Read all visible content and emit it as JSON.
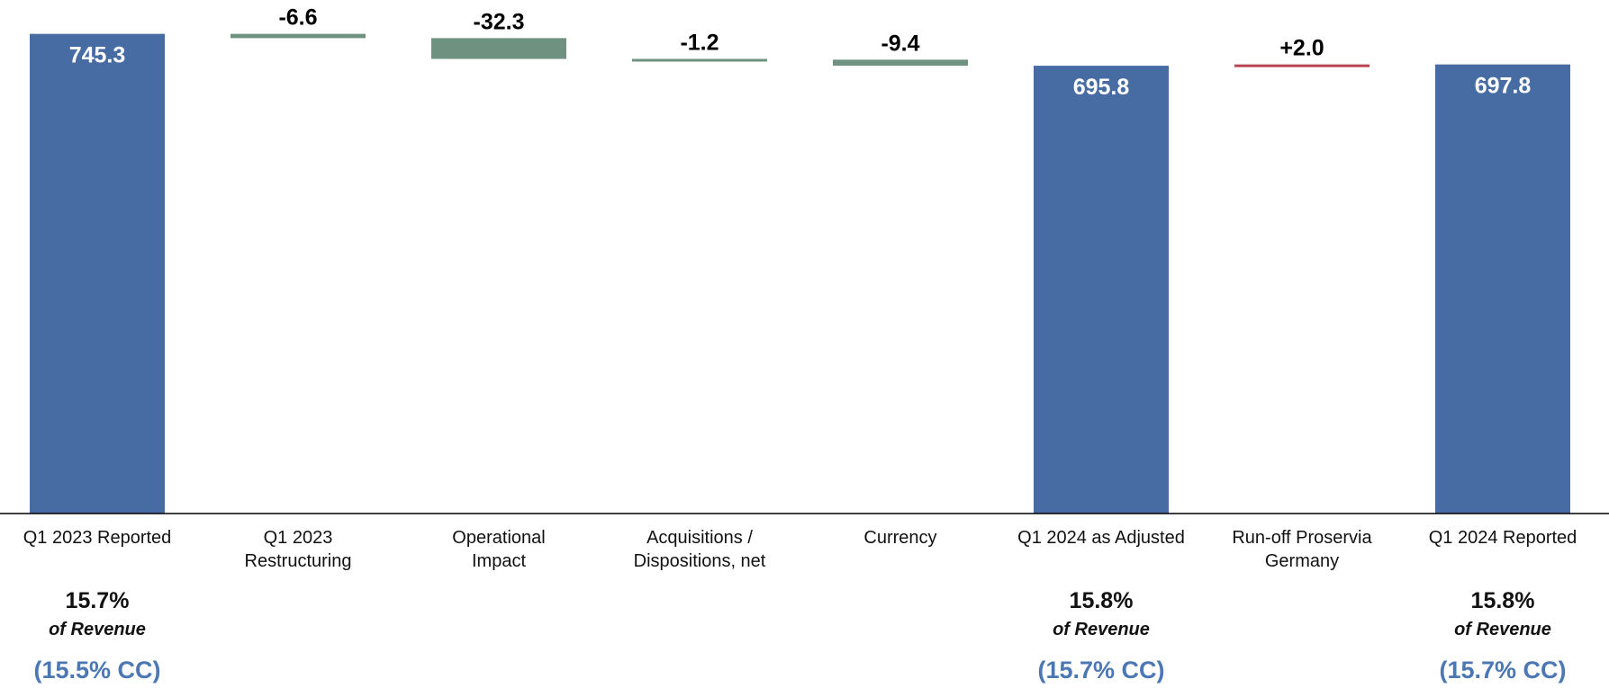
{
  "colors": {
    "total": "#476ca4",
    "decrease": "#6f9180",
    "increase": "#b9444f",
    "total_label": "#ffffff",
    "delta_label": "#000000",
    "cc_text": "#4b78b4",
    "axis": "#000000"
  },
  "chart_data": {
    "type": "waterfall",
    "categories": [
      "Q1 2023 Reported",
      "Q1 2023 Restructuring",
      "Operational Impact",
      "Acquisitions / Dispositions, net",
      "Currency",
      "Q1 2024 as Adjusted",
      "Run-off Proservia Germany",
      "Q1 2024 Reported"
    ],
    "category_lines": [
      [
        "Q1 2023 Reported"
      ],
      [
        "Q1 2023",
        "Restructuring"
      ],
      [
        "Operational",
        "Impact"
      ],
      [
        "Acquisitions /",
        "Dispositions, net"
      ],
      [
        "Currency"
      ],
      [
        "Q1 2024 as Adjusted"
      ],
      [
        "Run-off Proservia",
        "Germany"
      ],
      [
        "Q1 2024 Reported"
      ]
    ],
    "steps": [
      {
        "kind": "total",
        "value": 745.3,
        "label": "745.3"
      },
      {
        "kind": "decrease",
        "value": -6.6,
        "label": "-6.6"
      },
      {
        "kind": "decrease",
        "value": -32.3,
        "label": "-32.3"
      },
      {
        "kind": "decrease",
        "value": -1.2,
        "label": "-1.2"
      },
      {
        "kind": "decrease",
        "value": -9.4,
        "label": "-9.4"
      },
      {
        "kind": "total",
        "value": 695.8,
        "label": "695.8"
      },
      {
        "kind": "increase",
        "value": 2.0,
        "label": "+2.0"
      },
      {
        "kind": "total",
        "value": 697.8,
        "label": "697.8"
      }
    ],
    "ylim": [
      0,
      745.3
    ],
    "grid": false,
    "legend": "none"
  },
  "margin_notes": [
    {
      "category_index": 0,
      "percent": "15.7%",
      "of_revenue": "of Revenue",
      "cc": "(15.5% CC)"
    },
    {
      "category_index": 5,
      "percent": "15.8%",
      "of_revenue": "of Revenue",
      "cc": "(15.7% CC)"
    },
    {
      "category_index": 7,
      "percent": "15.8%",
      "of_revenue": "of Revenue",
      "cc": "(15.7% CC)"
    }
  ]
}
